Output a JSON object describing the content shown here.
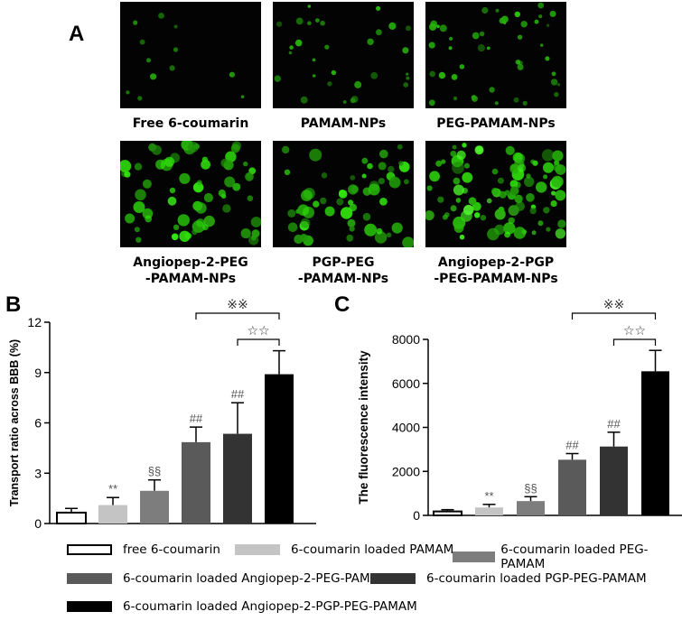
{
  "panels": {
    "a": "A",
    "b": "B",
    "c": "C"
  },
  "micrographs": [
    {
      "label_lines": [
        "Free 6-coumarin"
      ],
      "intensity": 1
    },
    {
      "label_lines": [
        "PAMAM-NPs"
      ],
      "intensity": 2
    },
    {
      "label_lines": [
        "PEG-PAMAM-NPs"
      ],
      "intensity": 3
    },
    {
      "label_lines": [
        "Angiopep-2-PEG",
        "-PAMAM-NPs"
      ],
      "intensity": 4
    },
    {
      "label_lines": [
        "PGP-PEG",
        "-PAMAM-NPs"
      ],
      "intensity": 4
    },
    {
      "label_lines": [
        "Angiopep-2-PGP",
        "-PEG-PAMAM-NPs"
      ],
      "intensity": 5
    }
  ],
  "chart_data": [
    {
      "type": "bar",
      "panel": "B",
      "ylabel": "Transport ratio across BBB (%)",
      "ylim": [
        0,
        12
      ],
      "yticks": [
        0,
        3,
        6,
        9,
        12
      ],
      "values": [
        0.65,
        1.1,
        1.95,
        4.85,
        5.35,
        8.9
      ],
      "errors": [
        0.25,
        0.45,
        0.65,
        0.9,
        1.85,
        1.4
      ],
      "annotations": [
        "",
        "**",
        "§§",
        "##",
        "##",
        ""
      ],
      "brackets": [
        {
          "from": 3,
          "to": 5,
          "label": "※※"
        },
        {
          "from": 4,
          "to": 5,
          "label": "☆☆"
        }
      ]
    },
    {
      "type": "bar",
      "panel": "C",
      "ylabel": "The fluorescence intensity",
      "ylim": [
        0,
        8000
      ],
      "yticks": [
        0,
        2000,
        4000,
        6000,
        8000
      ],
      "values": [
        180,
        360,
        650,
        2530,
        3130,
        6550
      ],
      "errors": [
        80,
        140,
        200,
        280,
        650,
        950
      ],
      "annotations": [
        "",
        "**",
        "§§",
        "##",
        "##",
        ""
      ],
      "brackets": [
        {
          "from": 3,
          "to": 5,
          "label": "※※"
        },
        {
          "from": 4,
          "to": 5,
          "label": "☆☆"
        }
      ]
    }
  ],
  "series_colors": [
    "#ffffff",
    "#c4c4c4",
    "#7d7d7d",
    "#5a5a5a",
    "#333333",
    "#000000"
  ],
  "legend": [
    "free 6-coumarin",
    "6-coumarin loaded PAMAM",
    "6-coumarin loaded PEG-PAMAM",
    "6-coumarin loaded Angiopep-2-PEG-PAMAM",
    "6-coumarin loaded PGP-PEG-PAMAM",
    "6-coumarin loaded Angiopep-2-PGP-PEG-PAMAM"
  ]
}
